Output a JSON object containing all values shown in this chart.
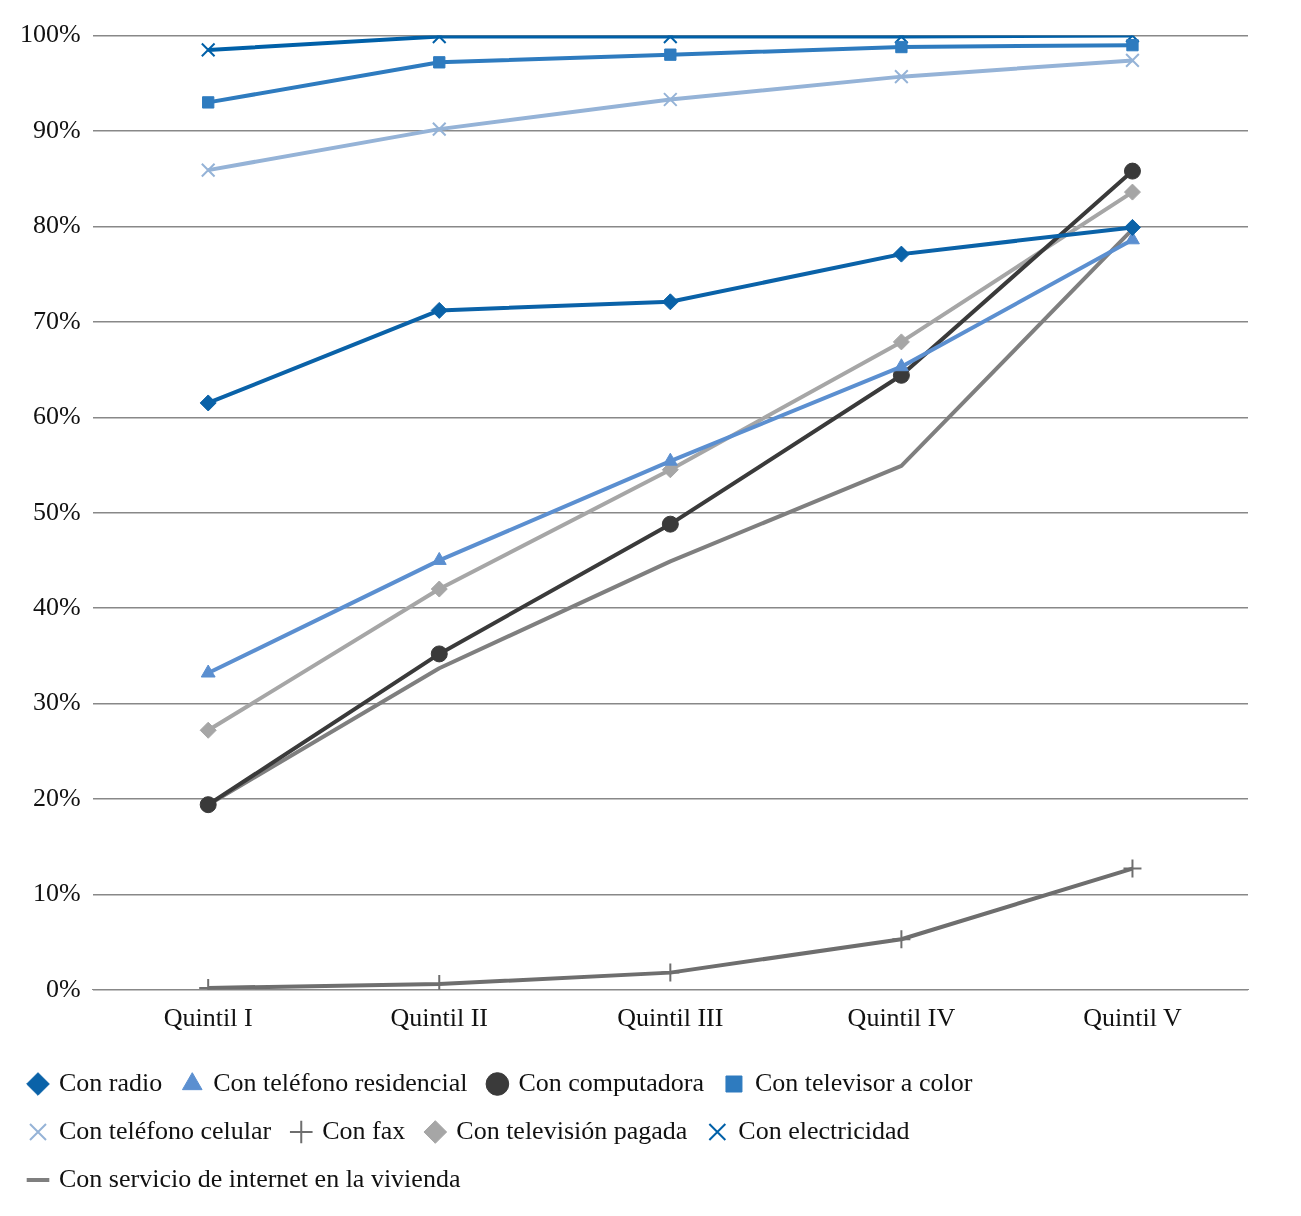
{
  "chart_data": {
    "type": "line",
    "categories": [
      "Quintil I",
      "Quintil II",
      "Quintil III",
      "Quintil IV",
      "Quintil V"
    ],
    "ylim": [
      0,
      100
    ],
    "yticks": [
      {
        "value": 0,
        "label": "0%"
      },
      {
        "value": 10,
        "label": "10%"
      },
      {
        "value": 20,
        "label": "20%"
      },
      {
        "value": 30,
        "label": "30%"
      },
      {
        "value": 40,
        "label": "40%"
      },
      {
        "value": 50,
        "label": "50%"
      },
      {
        "value": 60,
        "label": "60%"
      },
      {
        "value": 70,
        "label": "70%"
      },
      {
        "value": 80,
        "label": "80%"
      },
      {
        "value": 90,
        "label": "90%"
      },
      {
        "value": 100,
        "label": "100%"
      }
    ],
    "grid": "y",
    "legend": "bottom",
    "line_style": "solid",
    "series": [
      {
        "name": "Con radio",
        "color": "#0a62a8",
        "marker": "diamond",
        "values": [
          61.5,
          71.2,
          72.1,
          77.1,
          79.9
        ]
      },
      {
        "name": "Con teléfono residencial",
        "color": "#5b8fd0",
        "marker": "triangle",
        "values": [
          33.2,
          45.0,
          55.4,
          65.3,
          78.6
        ]
      },
      {
        "name": "Con computadora",
        "color": "#3a3a3a",
        "marker": "circle",
        "values": [
          19.4,
          35.2,
          48.8,
          64.4,
          85.8
        ]
      },
      {
        "name": "Con televisor a color",
        "color": "#2e7bbf",
        "marker": "square",
        "values": [
          93.0,
          97.2,
          98.0,
          98.8,
          99.0
        ]
      },
      {
        "name": "Con teléfono celular",
        "color": "#95b3d7",
        "marker": "cross",
        "values": [
          85.9,
          90.2,
          93.3,
          95.7,
          97.4
        ]
      },
      {
        "name": "Con fax",
        "color": "#6e6e6e",
        "marker": "plus",
        "values": [
          0.2,
          0.6,
          1.8,
          5.3,
          12.7
        ]
      },
      {
        "name": "Con televisión pagada",
        "color": "#a6a6a6",
        "marker": "diamond",
        "values": [
          27.2,
          42.0,
          54.5,
          67.9,
          83.6
        ]
      },
      {
        "name": "Con electricidad",
        "color": "#0060a8",
        "marker": "cross",
        "values": [
          98.5,
          99.9,
          99.9,
          99.9,
          100
        ]
      },
      {
        "name": "Con servicio de internet en la vivienda",
        "color": "#7f7f7f",
        "marker": "none",
        "values": [
          19.4,
          33.7,
          44.9,
          54.9,
          79.7
        ]
      }
    ]
  }
}
